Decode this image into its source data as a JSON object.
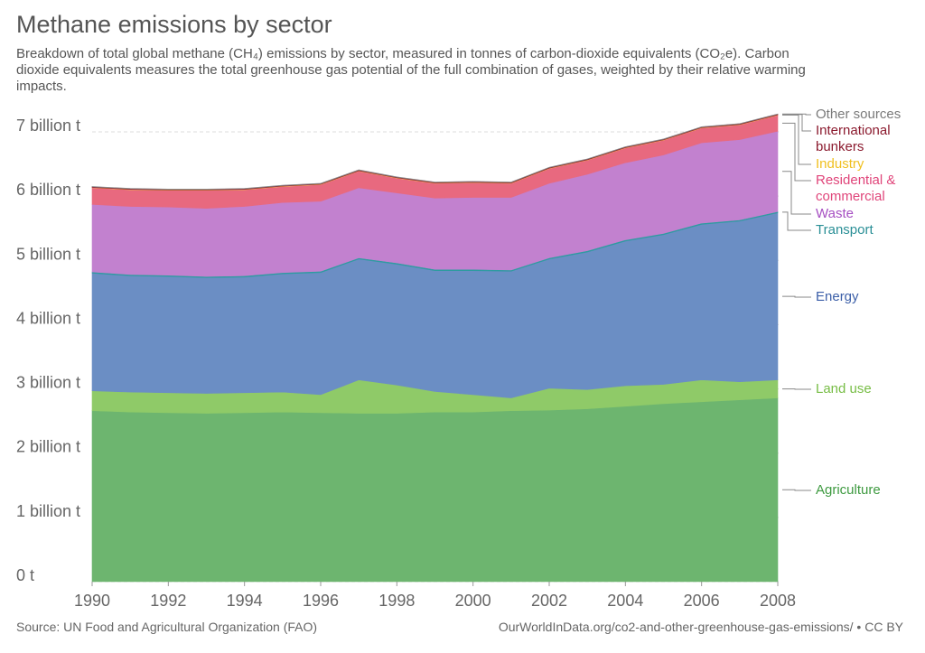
{
  "chart_data": {
    "type": "stacked_area",
    "title": "Methane emissions by sector",
    "subtitle": "Breakdown of total global methane (CH₄) emissions by sector, measured in tonnes of carbon-dioxide equivalents (CO₂e). Carbon dioxide equivalents measures the total greenhouse gas potential of the full combination of gases, weighted by their relative warming impacts.",
    "source": "Source: UN Food and Agricultural Organization (FAO)",
    "credit": "OurWorldInData.org/co2-and-other-greenhouse-gas-emissions/ • CC BY",
    "x": [
      1990,
      1991,
      1992,
      1993,
      1994,
      1995,
      1996,
      1997,
      1998,
      1999,
      2000,
      2001,
      2002,
      2003,
      2004,
      2005,
      2006,
      2007,
      2008
    ],
    "xlim": [
      1990,
      2008
    ],
    "xticks": [
      1990,
      1992,
      1994,
      1996,
      1998,
      2000,
      2002,
      2004,
      2006,
      2008
    ],
    "ylim": [
      0,
      7000000000
    ],
    "yticks": [
      {
        "value": 0,
        "label": "0 t"
      },
      {
        "value": 1000000000,
        "label": "1 billion t"
      },
      {
        "value": 2000000000,
        "label": "2 billion t"
      },
      {
        "value": 3000000000,
        "label": "3 billion t"
      },
      {
        "value": 4000000000,
        "label": "4 billion t"
      },
      {
        "value": 5000000000,
        "label": "5 billion t"
      },
      {
        "value": 6000000000,
        "label": "6 billion t"
      },
      {
        "value": 7000000000,
        "label": "7 billion t"
      }
    ],
    "grid": true,
    "series": [
      {
        "name": "Agriculture",
        "color": "#6db56f",
        "label_color": "#3e9a40",
        "values": [
          2660000000,
          2640000000,
          2630000000,
          2620000000,
          2630000000,
          2640000000,
          2630000000,
          2620000000,
          2620000000,
          2640000000,
          2640000000,
          2660000000,
          2670000000,
          2690000000,
          2730000000,
          2770000000,
          2800000000,
          2830000000,
          2860000000
        ]
      },
      {
        "name": "Land use",
        "color": "#8fca68",
        "label_color": "#77bd45",
        "values": [
          310000000,
          310000000,
          310000000,
          310000000,
          310000000,
          310000000,
          280000000,
          520000000,
          440000000,
          320000000,
          270000000,
          200000000,
          340000000,
          300000000,
          320000000,
          300000000,
          340000000,
          280000000,
          280000000
        ]
      },
      {
        "name": "Energy",
        "color": "#6b8ec4",
        "label_color": "#3c5fa8",
        "values": [
          1830000000,
          1810000000,
          1810000000,
          1800000000,
          1800000000,
          1840000000,
          1900000000,
          1880000000,
          1880000000,
          1880000000,
          1930000000,
          1970000000,
          2010000000,
          2140000000,
          2250000000,
          2330000000,
          2420000000,
          2500000000,
          2600000000
        ]
      },
      {
        "name": "Transport",
        "color": "#2f9ba1",
        "label_color": "#2a8f96",
        "values": [
          20000000,
          20000000,
          20000000,
          20000000,
          20000000,
          20000000,
          20000000,
          20000000,
          20000000,
          20000000,
          20000000,
          20000000,
          20000000,
          20000000,
          20000000,
          20000000,
          20000000,
          20000000,
          20000000
        ]
      },
      {
        "name": "Waste",
        "color": "#c281cf",
        "label_color": "#a64fc2",
        "values": [
          1050000000,
          1060000000,
          1060000000,
          1060000000,
          1080000000,
          1090000000,
          1090000000,
          1090000000,
          1090000000,
          1110000000,
          1120000000,
          1130000000,
          1160000000,
          1190000000,
          1200000000,
          1220000000,
          1250000000,
          1250000000,
          1250000000
        ]
      },
      {
        "name": "Residential & commercial",
        "color": "#e8697f",
        "label_color": "#e0457a",
        "values": [
          260000000,
          260000000,
          260000000,
          280000000,
          260000000,
          250000000,
          260000000,
          260000000,
          230000000,
          230000000,
          230000000,
          220000000,
          230000000,
          220000000,
          230000000,
          230000000,
          230000000,
          230000000,
          250000000
        ]
      },
      {
        "name": "Industry",
        "color": "#f4c843",
        "label_color": "#f0c020",
        "values": [
          5000000,
          5000000,
          5000000,
          5000000,
          5000000,
          5000000,
          5000000,
          5000000,
          5000000,
          5000000,
          5000000,
          5000000,
          5000000,
          5000000,
          5000000,
          5000000,
          5000000,
          5000000,
          5000000
        ]
      },
      {
        "name": "International bunkers",
        "color": "#8c1c30",
        "label_color": "#8b1a2e",
        "values": [
          10000000,
          10000000,
          10000000,
          10000000,
          10000000,
          10000000,
          10000000,
          10000000,
          10000000,
          10000000,
          10000000,
          10000000,
          10000000,
          10000000,
          10000000,
          10000000,
          10000000,
          10000000,
          10000000
        ]
      },
      {
        "name": "Other sources",
        "color": "#8a8a8a",
        "label_color": "#7a7a7a",
        "values": [
          5000000,
          5000000,
          5000000,
          5000000,
          5000000,
          5000000,
          5000000,
          5000000,
          5000000,
          5000000,
          5000000,
          5000000,
          5000000,
          5000000,
          5000000,
          5000000,
          5000000,
          5000000,
          5000000
        ]
      }
    ]
  }
}
